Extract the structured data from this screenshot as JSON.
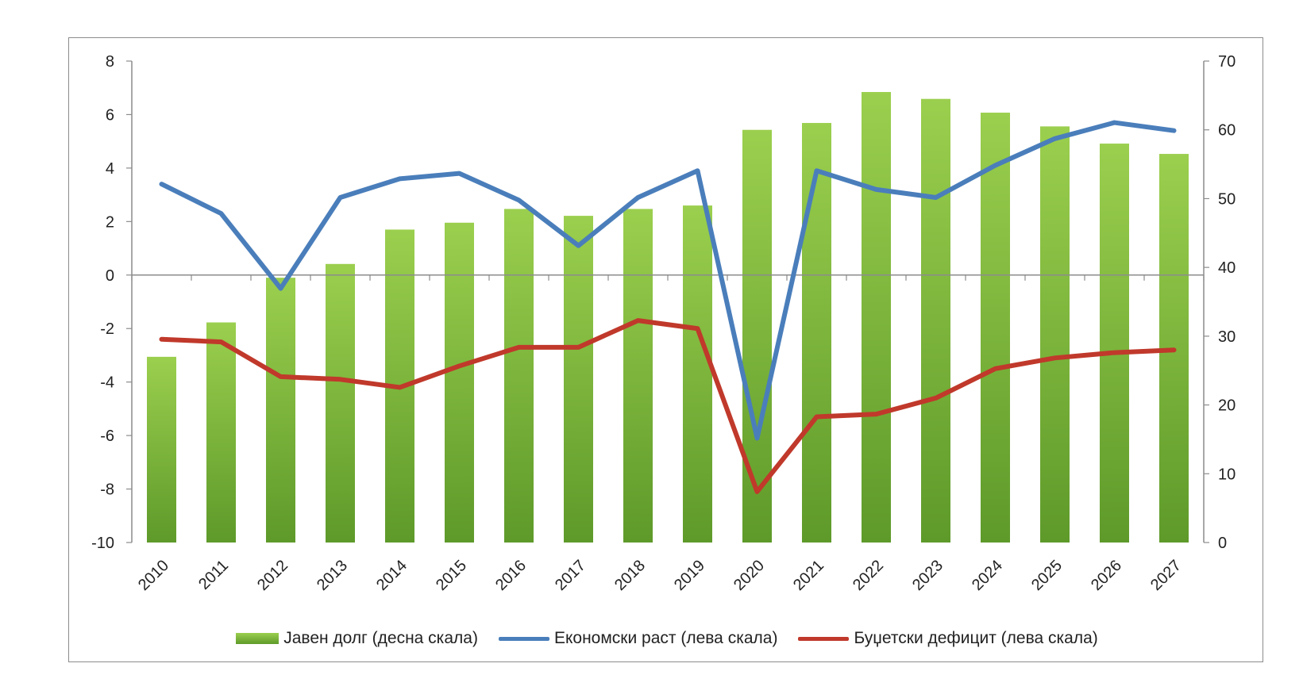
{
  "chart_data": {
    "type": "bar",
    "categories": [
      "2010",
      "2011",
      "2012",
      "2013",
      "2014",
      "2015",
      "2016",
      "2017",
      "2018",
      "2019",
      "2020",
      "2021",
      "2022",
      "2023",
      "2024",
      "2025",
      "2026",
      "2027"
    ],
    "series": [
      {
        "name": "Јавен долг (десна скала)",
        "kind": "bar",
        "axis": "right",
        "color": "#7cb342",
        "values": [
          27.0,
          32.0,
          38.5,
          40.5,
          45.5,
          46.5,
          48.5,
          47.5,
          48.5,
          49.0,
          60.0,
          61.0,
          65.5,
          64.5,
          62.5,
          60.5,
          58.0,
          56.5
        ]
      },
      {
        "name": "Економски раст (лева скала)",
        "kind": "line",
        "axis": "left",
        "color": "#4a7ebb",
        "values": [
          3.4,
          2.3,
          -0.5,
          2.9,
          3.6,
          3.8,
          2.8,
          1.1,
          2.9,
          3.9,
          -6.1,
          3.9,
          3.2,
          2.9,
          4.1,
          5.1,
          5.7,
          5.4
        ]
      },
      {
        "name": "Буџетски дефицит (лева скала)",
        "kind": "line",
        "axis": "left",
        "color": "#c0392b",
        "values": [
          -2.4,
          -2.5,
          -3.8,
          -3.9,
          -4.2,
          -3.4,
          -2.7,
          -2.7,
          -1.7,
          -2.0,
          -8.1,
          -5.3,
          -5.2,
          -4.6,
          -3.5,
          -3.1,
          -2.9,
          -2.8
        ]
      }
    ],
    "left_axis": {
      "ylim": [
        -10,
        8
      ],
      "ticks": [
        8,
        6,
        4,
        2,
        0,
        -2,
        -4,
        -6,
        -8,
        -10
      ]
    },
    "right_axis": {
      "ylim": [
        0,
        70
      ],
      "ticks": [
        70,
        60,
        50,
        40,
        30,
        20,
        10,
        0
      ]
    },
    "legend_position": "bottom",
    "grid": false
  }
}
